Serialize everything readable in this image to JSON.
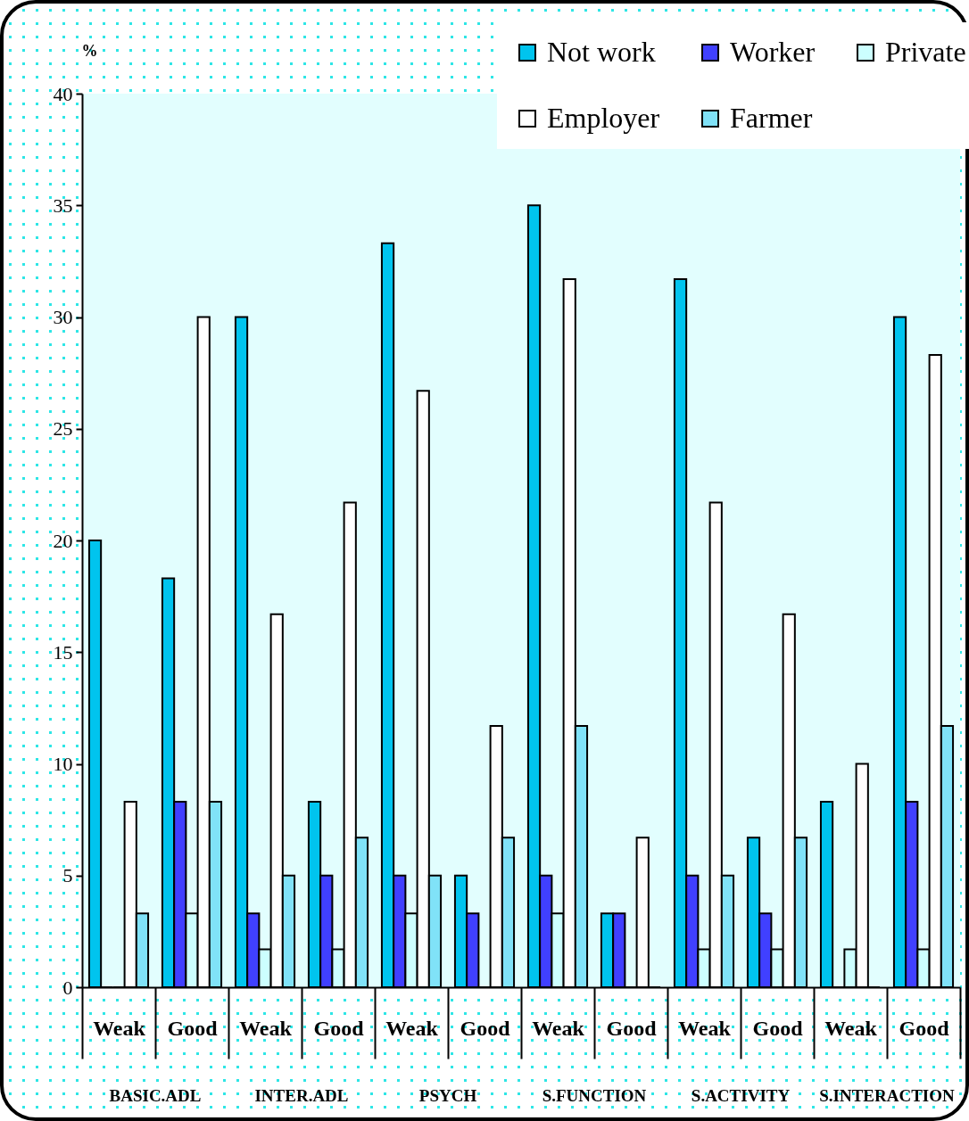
{
  "chart_data": {
    "type": "bar",
    "ylabel": "%",
    "categories": [
      "Weak",
      "Good",
      "Weak",
      "Good",
      "Weak",
      "Good",
      "Weak",
      "Good",
      "Weak",
      "Good",
      "Weak",
      "Good"
    ],
    "annotations": [
      "BASIC.ADL",
      "INTER.ADL",
      "PSYCH",
      "S.FUNCTION",
      "S.ACTIVITY",
      "S.INTERACTION"
    ],
    "series": [
      {
        "name": "Not work",
        "color": "#00c4ee",
        "values": [
          20,
          18.3,
          30,
          8.3,
          33.3,
          5,
          35,
          3.3,
          31.7,
          6.7,
          8.3,
          30
        ]
      },
      {
        "name": "Worker",
        "color": "#4040ff",
        "values": [
          0,
          8.3,
          3.3,
          5,
          5,
          3.3,
          5,
          3.3,
          5,
          3.3,
          0,
          8.3
        ]
      },
      {
        "name": "Private",
        "color": "#ccffff",
        "values": [
          0,
          3.3,
          1.7,
          1.7,
          3.3,
          0,
          3.3,
          0,
          1.7,
          1.7,
          1.7,
          1.7
        ]
      },
      {
        "name": "Employer",
        "color": "#ffffff",
        "values": [
          8.3,
          30,
          16.7,
          21.7,
          26.7,
          11.7,
          31.7,
          6.7,
          21.7,
          16.7,
          10,
          28.3
        ]
      },
      {
        "name": "Farmer",
        "color": "#80e2f8",
        "values": [
          3.3,
          8.3,
          5,
          6.7,
          5,
          6.7,
          11.7,
          0,
          5,
          6.7,
          0,
          11.7
        ]
      }
    ],
    "ylim": [
      0,
      40
    ],
    "yticks": [
      0,
      5,
      10,
      15,
      20,
      25,
      30,
      35,
      40
    ],
    "legend": "top right"
  }
}
